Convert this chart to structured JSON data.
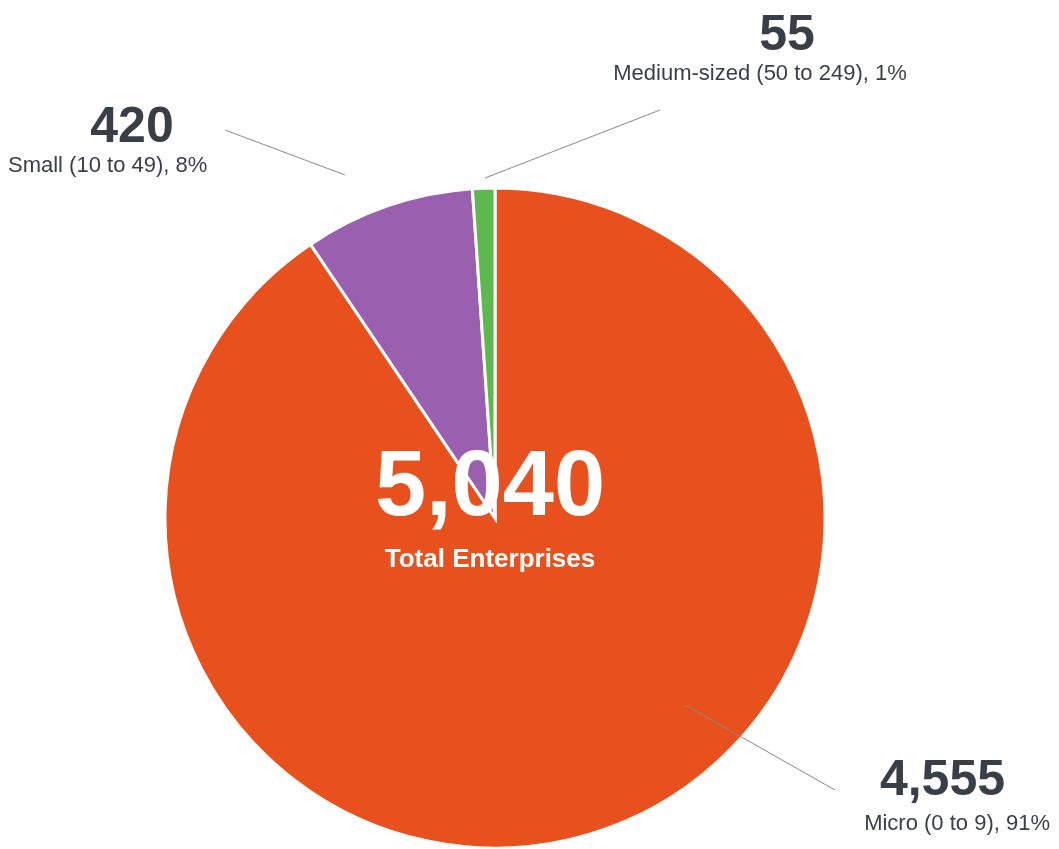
{
  "chart_data": {
    "type": "pie",
    "categories": [
      "Micro (0 to 9), 91%",
      "Small (10 to 49), 8%",
      "Medium-sized (50 to 249), 1%"
    ],
    "values": [
      4555,
      420,
      55
    ],
    "value_labels": [
      "4,555",
      "420",
      "55"
    ],
    "colors": [
      "#e8501e",
      "#9a5fae",
      "#5db94f"
    ],
    "annotations": [
      "5,040",
      "Total Enterprises"
    ]
  }
}
